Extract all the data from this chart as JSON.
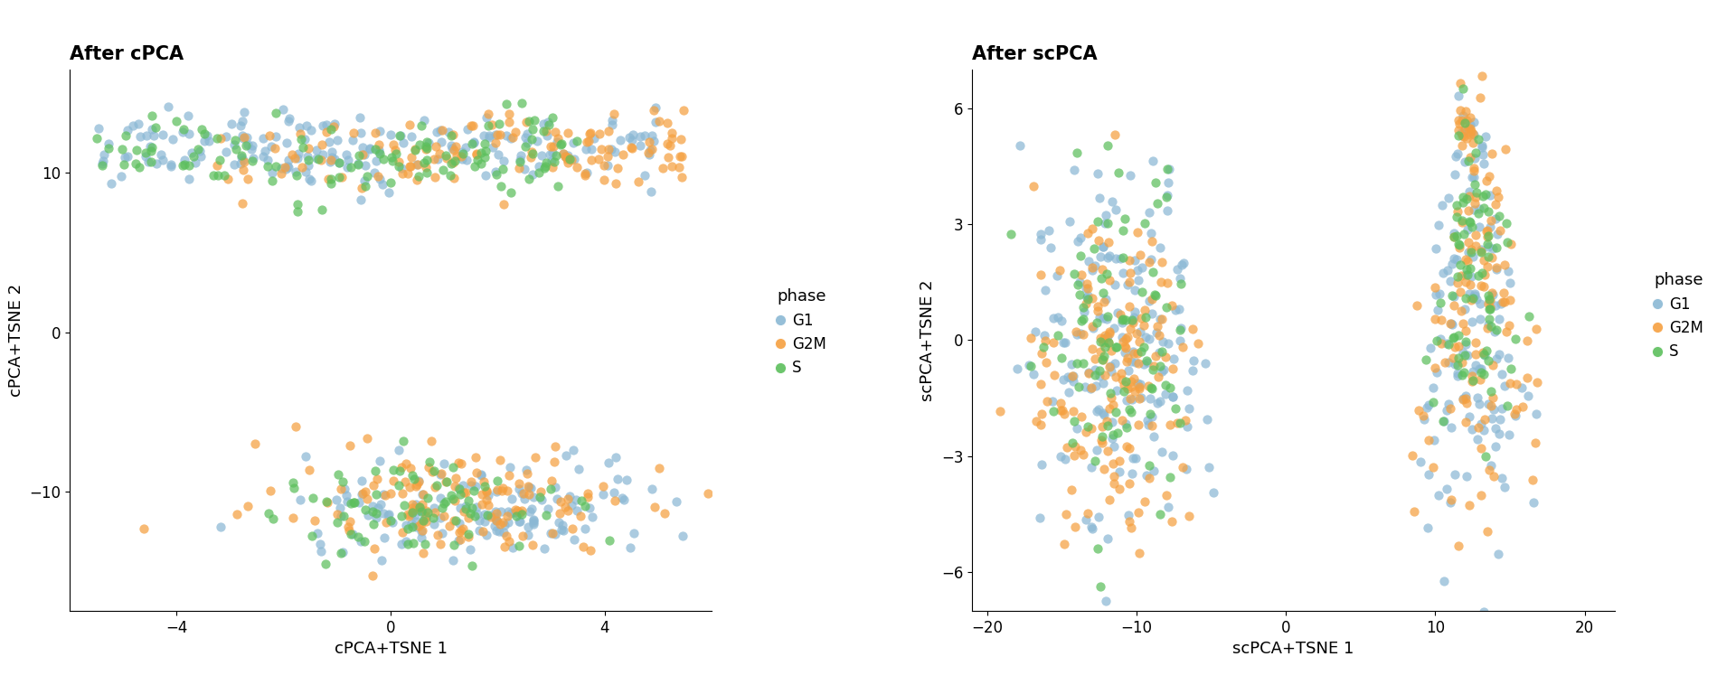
{
  "title1": "After cPCA",
  "title2": "After scPCA",
  "xlabel1": "cPCA+TSNE 1",
  "ylabel1": "cPCA+TSNE 2",
  "xlabel2": "scPCA+TSNE 1",
  "ylabel2": "scPCA+TSNE 2",
  "colors": {
    "G1": "#8BB8D4",
    "G2M": "#F5A040",
    "S": "#5CBF5C"
  },
  "legend_title": "phase",
  "phases": [
    "G1",
    "G2M",
    "S"
  ],
  "point_size": 55,
  "alpha": 0.72,
  "bg_color": "#FFFFFF",
  "cpca_xlim": [
    -6.0,
    6.0
  ],
  "cpca_ylim": [
    -17.5,
    16.5
  ],
  "cpca_xticks": [
    -4,
    0,
    4
  ],
  "cpca_yticks": [
    -10,
    0,
    10
  ],
  "scpca_xlim": [
    -21,
    22
  ],
  "scpca_ylim": [
    -7,
    7
  ],
  "scpca_xticks": [
    -20,
    -10,
    0,
    10,
    20
  ],
  "scpca_yticks": [
    -6,
    -3,
    0,
    3,
    6
  ]
}
